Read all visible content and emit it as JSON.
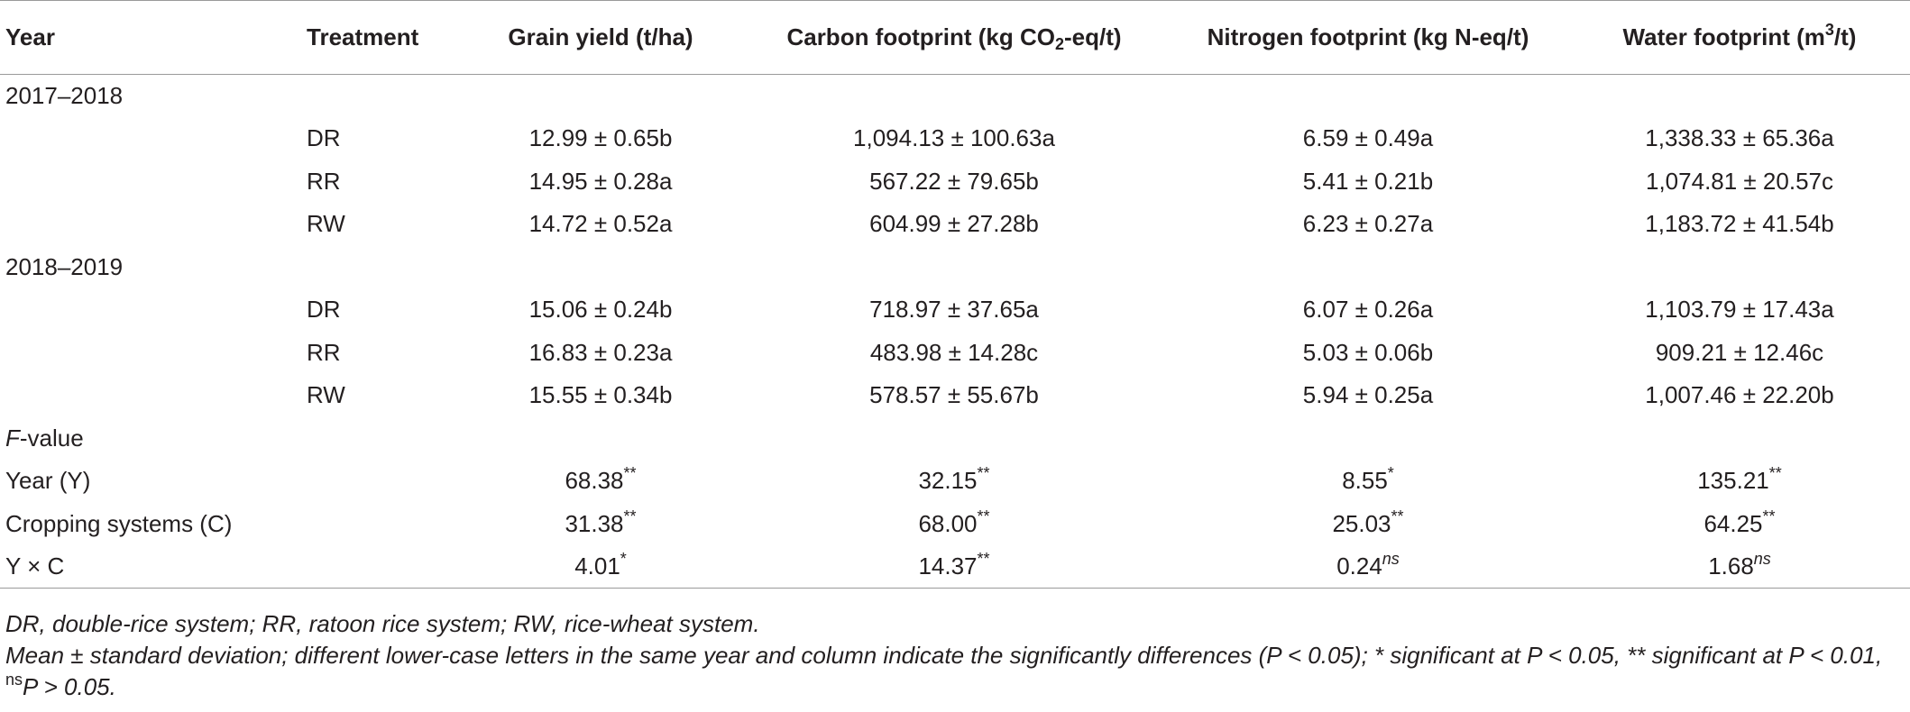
{
  "headers": {
    "year": "Year",
    "treatment": "Treatment",
    "grain_yield": "Grain yield (t/ha)",
    "carbon_pre": "Carbon footprint (kg CO",
    "carbon_sub": "2",
    "carbon_post": "-eq/t)",
    "nitrogen": "Nitrogen footprint (kg N-eq/t)",
    "water_pre": "Water footprint (m",
    "water_sup": "3",
    "water_post": "/t)"
  },
  "groups": [
    {
      "year": "2017–2018",
      "rows": [
        {
          "treatment": "DR",
          "grain": "12.99 ± 0.65b",
          "carbon": "1,094.13 ± 100.63a",
          "nitrogen": "6.59 ± 0.49a",
          "water": "1,338.33 ± 65.36a"
        },
        {
          "treatment": "RR",
          "grain": "14.95 ± 0.28a",
          "carbon": "567.22 ± 79.65b",
          "nitrogen": "5.41 ± 0.21b",
          "water": "1,074.81 ± 20.57c"
        },
        {
          "treatment": "RW",
          "grain": "14.72 ± 0.52a",
          "carbon": "604.99 ± 27.28b",
          "nitrogen": "6.23 ± 0.27a",
          "water": "1,183.72 ± 41.54b"
        }
      ]
    },
    {
      "year": "2018–2019",
      "rows": [
        {
          "treatment": "DR",
          "grain": "15.06 ± 0.24b",
          "carbon": "718.97 ± 37.65a",
          "nitrogen": "6.07 ± 0.26a",
          "water": "1,103.79 ± 17.43a"
        },
        {
          "treatment": "RR",
          "grain": "16.83 ± 0.23a",
          "carbon": "483.98 ± 14.28c",
          "nitrogen": "5.03 ± 0.06b",
          "water": "909.21 ± 12.46c"
        },
        {
          "treatment": "RW",
          "grain": "15.55 ± 0.34b",
          "carbon": "578.57 ± 55.67b",
          "nitrogen": "5.94 ± 0.25a",
          "water": "1,007.46 ± 22.20b"
        }
      ]
    }
  ],
  "fvalue": {
    "label_italic": "F",
    "label_rest": "-value",
    "rows": [
      {
        "label": "Year (Y)",
        "grain": "68.38",
        "grain_sig": "**",
        "carbon": "32.15",
        "carbon_sig": "**",
        "nitrogen": "8.55",
        "nitrogen_sig": "*",
        "water": "135.21",
        "water_sig": "**"
      },
      {
        "label": "Cropping systems (C)",
        "grain": "31.38",
        "grain_sig": "**",
        "carbon": "68.00",
        "carbon_sig": "**",
        "nitrogen": "25.03",
        "nitrogen_sig": "**",
        "water": "64.25",
        "water_sig": "**"
      },
      {
        "label": "Y × C",
        "grain": "4.01",
        "grain_sig": "*",
        "carbon": "14.37",
        "carbon_sig": "**",
        "nitrogen": "0.24",
        "nitrogen_sig": "ns",
        "water": "1.68",
        "water_sig": "ns"
      }
    ]
  },
  "footnotes": {
    "abbrev": "DR, double-rice system; RR, ratoon rice system; RW, rice-wheat system.",
    "stats_part1": "Mean ± standard deviation; different lower-case letters in the same year and column indicate the significantly differences (P < 0.05); * significant at P < 0.05, ** significant at P < 0.01, ",
    "stats_sup": "ns",
    "stats_part2": "P > 0.05."
  }
}
